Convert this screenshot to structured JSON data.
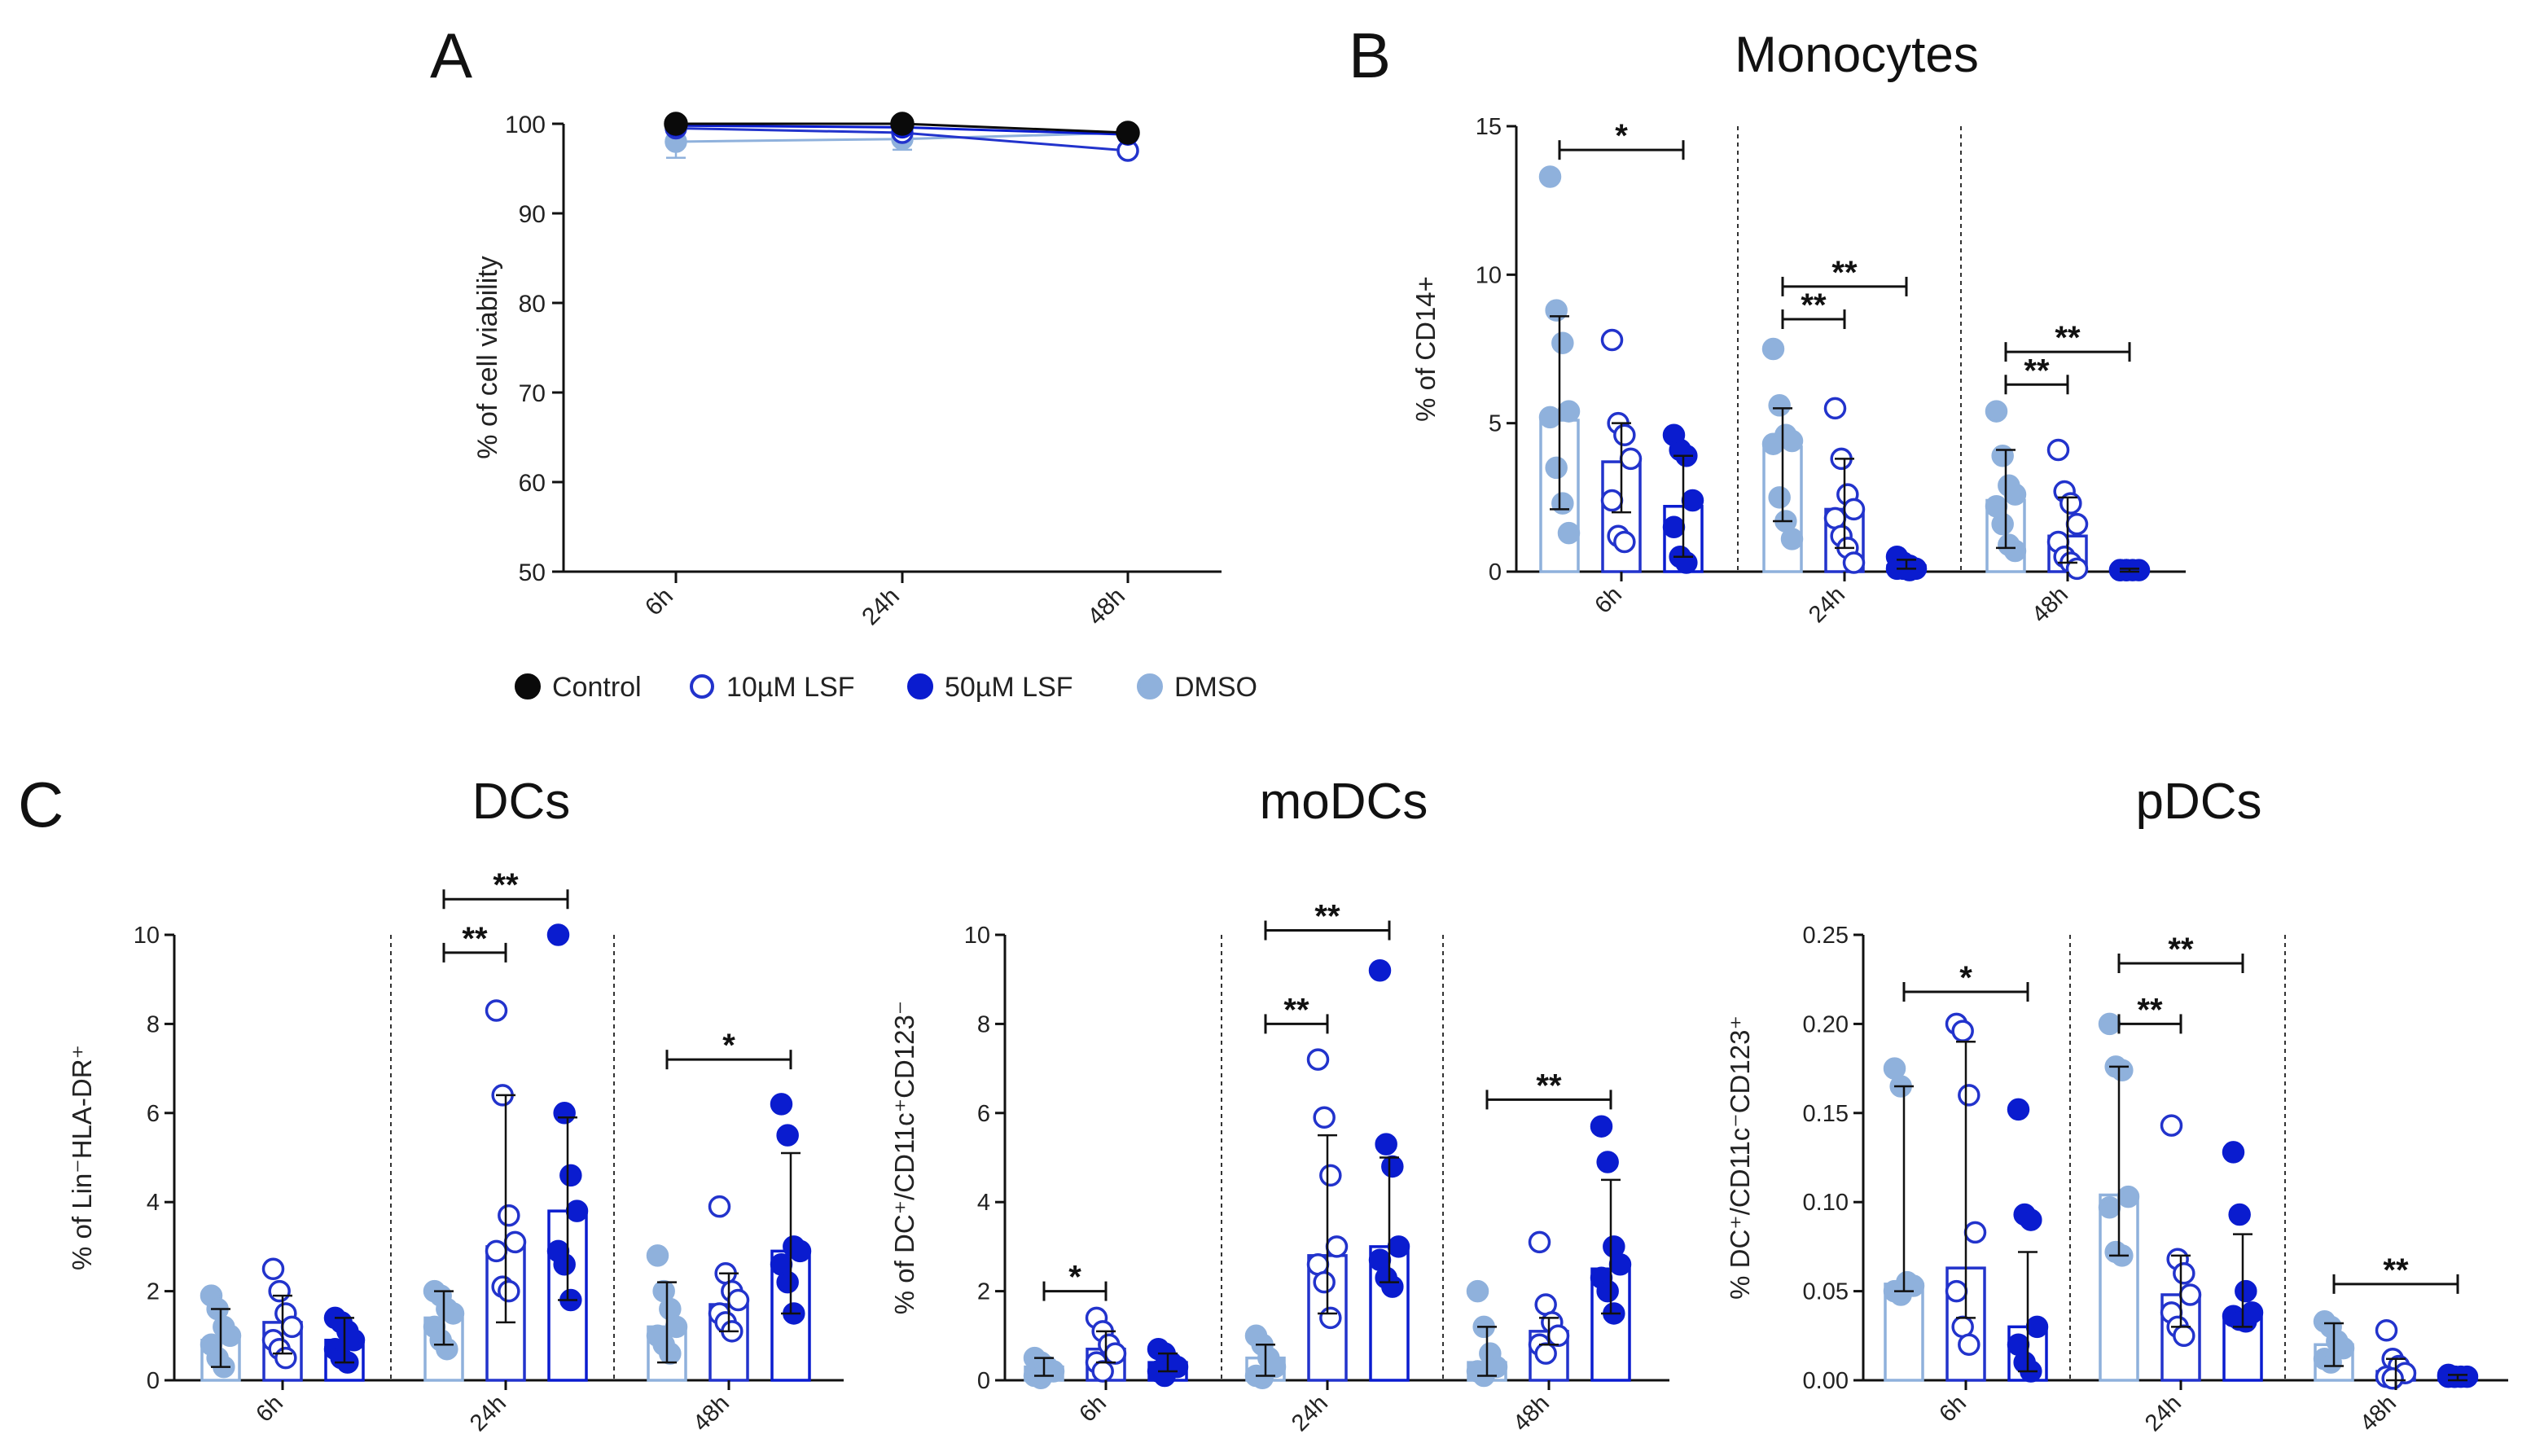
{
  "colors": {
    "control": "#0a0a0a",
    "lsf10": "#2233cc",
    "lsf50": "#0a1ccf",
    "dmso": "#8fb1dc",
    "axis": "#111111"
  },
  "legend": {
    "items": [
      {
        "key": "control",
        "label": "Control",
        "marker": "filled-black"
      },
      {
        "key": "lsf10",
        "label": "10µM LSF",
        "marker": "open-blue"
      },
      {
        "key": "lsf50",
        "label": "50µM LSF",
        "marker": "filled-blue"
      },
      {
        "key": "dmso",
        "label": "DMSO",
        "marker": "filled-lightblue"
      }
    ]
  },
  "panels": {
    "A": "A",
    "B": "B",
    "C": "C"
  },
  "chart_data": [
    {
      "id": "A",
      "type": "line",
      "title": "",
      "xlabel": "",
      "ylabel": "% of cell viability",
      "categories": [
        "6h",
        "24h",
        "48h"
      ],
      "ylim": [
        50,
        100
      ],
      "yticks": [
        50,
        60,
        70,
        80,
        90,
        100
      ],
      "series": [
        {
          "key": "control",
          "name": "Control",
          "values": [
            100,
            100,
            99
          ],
          "errors": [
            0.3,
            0.3,
            0.3
          ]
        },
        {
          "key": "lsf10",
          "name": "10µM LSF",
          "values": [
            99.5,
            99,
            97
          ],
          "errors": [
            0.5,
            0.5,
            0.5
          ]
        },
        {
          "key": "lsf50",
          "name": "50µM LSF",
          "values": [
            99.8,
            99.6,
            98.8
          ],
          "errors": [
            0.3,
            0.3,
            0.3
          ]
        },
        {
          "key": "dmso",
          "name": "DMSO",
          "values": [
            98,
            98.3,
            99
          ],
          "errors": [
            1.8,
            1.2,
            0.5
          ]
        }
      ]
    },
    {
      "id": "B",
      "type": "bar",
      "title": "Monocytes",
      "ylabel": "% of CD14+",
      "ylabel_html": "",
      "groups": [
        "6h",
        "24h",
        "48h"
      ],
      "ylim": [
        0,
        15
      ],
      "yticks": [
        0,
        5,
        10,
        15
      ],
      "ytick_labels": [
        "0",
        "5",
        "10",
        "15"
      ],
      "series_keys": [
        "dmso",
        "lsf10",
        "lsf50"
      ],
      "bars": [
        [
          {
            "mean": 5.1,
            "sdLow": 2.1,
            "sdHigh": 8.6,
            "points": [
              13.3,
              8.8,
              7.7,
              5.4,
              5.2,
              3.5,
              2.3,
              1.3
            ]
          },
          {
            "mean": 3.7,
            "sdLow": 2.0,
            "sdHigh": 5.0,
            "points": [
              7.8,
              5.0,
              4.6,
              3.8,
              2.4,
              1.2,
              1.0
            ]
          },
          {
            "mean": 2.2,
            "sdLow": 0.5,
            "sdHigh": 3.9,
            "points": [
              4.6,
              4.1,
              3.9,
              2.4,
              1.5,
              0.5,
              0.3
            ]
          }
        ],
        [
          {
            "mean": 4.2,
            "sdLow": 1.7,
            "sdHigh": 5.5,
            "points": [
              7.5,
              5.6,
              4.6,
              4.4,
              4.3,
              2.5,
              1.7,
              1.1
            ]
          },
          {
            "mean": 2.1,
            "sdLow": 0.8,
            "sdHigh": 3.8,
            "points": [
              5.5,
              3.8,
              2.6,
              2.1,
              1.8,
              1.2,
              0.8,
              0.3
            ]
          },
          {
            "mean": 0.2,
            "sdLow": 0.1,
            "sdHigh": 0.4,
            "points": [
              0.5,
              0.3,
              0.2,
              0.1,
              0.1,
              0.1,
              0.05
            ]
          }
        ],
        [
          {
            "mean": 2.4,
            "sdLow": 0.8,
            "sdHigh": 4.1,
            "points": [
              5.4,
              3.9,
              2.9,
              2.6,
              2.2,
              1.6,
              0.9,
              0.7
            ]
          },
          {
            "mean": 1.2,
            "sdLow": 0.3,
            "sdHigh": 2.5,
            "points": [
              4.1,
              2.7,
              2.3,
              1.6,
              1.0,
              0.5,
              0.3,
              0.1
            ]
          },
          {
            "mean": 0.05,
            "sdLow": 0.0,
            "sdHigh": 0.1,
            "points": [
              0.05,
              0.05,
              0.05,
              0.05,
              0.05,
              0.05
            ]
          }
        ]
      ],
      "sig": [
        {
          "group": 0,
          "from": 0,
          "to": 2,
          "label": "*",
          "y": 14.2
        },
        {
          "group": 1,
          "from": 0,
          "to": 1,
          "label": "**",
          "y": 8.5
        },
        {
          "group": 1,
          "from": 0,
          "to": 2,
          "label": "**",
          "y": 9.6
        },
        {
          "group": 2,
          "from": 0,
          "to": 1,
          "label": "**",
          "y": 6.3
        },
        {
          "group": 2,
          "from": 0,
          "to": 2,
          "label": "**",
          "y": 7.4
        }
      ]
    },
    {
      "id": "C1",
      "type": "bar",
      "title": "DCs",
      "ylabel": "% of Lin⁻HLA-DR⁺",
      "groups": [
        "6h",
        "24h",
        "48h"
      ],
      "ylim": [
        0,
        10
      ],
      "yticks": [
        0,
        2,
        4,
        6,
        8,
        10
      ],
      "ytick_labels": [
        "0",
        "2",
        "4",
        "6",
        "8",
        "10"
      ],
      "series_keys": [
        "dmso",
        "lsf10",
        "lsf50"
      ],
      "bars": [
        [
          {
            "mean": 0.9,
            "sdLow": 0.3,
            "sdHigh": 1.6,
            "points": [
              1.9,
              1.6,
              1.2,
              1.0,
              0.8,
              0.5,
              0.3
            ]
          },
          {
            "mean": 1.3,
            "sdLow": 0.6,
            "sdHigh": 1.9,
            "points": [
              2.5,
              2.0,
              1.5,
              1.2,
              0.9,
              0.7,
              0.5
            ]
          },
          {
            "mean": 0.9,
            "sdLow": 0.4,
            "sdHigh": 1.4,
            "points": [
              1.4,
              1.3,
              1.1,
              0.9,
              0.7,
              0.5,
              0.4
            ]
          }
        ],
        [
          {
            "mean": 1.4,
            "sdLow": 0.8,
            "sdHigh": 2.0,
            "points": [
              2.0,
              1.9,
              1.6,
              1.5,
              1.2,
              0.9,
              0.7
            ]
          },
          {
            "mean": 3.0,
            "sdLow": 1.3,
            "sdHigh": 6.4,
            "points": [
              8.3,
              6.4,
              3.7,
              3.1,
              2.9,
              2.1,
              2.0
            ]
          },
          {
            "mean": 3.8,
            "sdLow": 1.8,
            "sdHigh": 5.9,
            "points": [
              10.0,
              6.0,
              4.6,
              3.8,
              2.9,
              2.6,
              1.8
            ]
          }
        ],
        [
          {
            "mean": 1.2,
            "sdLow": 0.4,
            "sdHigh": 2.2,
            "points": [
              2.8,
              2.0,
              1.6,
              1.2,
              1.0,
              0.8,
              0.6
            ]
          },
          {
            "mean": 1.7,
            "sdLow": 1.1,
            "sdHigh": 2.4,
            "points": [
              3.9,
              2.4,
              2.0,
              1.8,
              1.5,
              1.3,
              1.1
            ]
          },
          {
            "mean": 2.9,
            "sdLow": 1.5,
            "sdHigh": 5.1,
            "points": [
              6.2,
              5.5,
              3.0,
              2.9,
              2.6,
              2.2,
              1.5
            ]
          }
        ]
      ],
      "sig": [
        {
          "group": 1,
          "from": 0,
          "to": 1,
          "label": "**",
          "y": 9.6
        },
        {
          "group": 1,
          "from": 0,
          "to": 2,
          "label": "**",
          "y": 10.8
        },
        {
          "group": 2,
          "from": 0,
          "to": 2,
          "label": "*",
          "y": 7.2
        }
      ]
    },
    {
      "id": "C2",
      "type": "bar",
      "title": "moDCs",
      "ylabel": "% of DC⁺/CD11c⁺CD123⁻",
      "groups": [
        "6h",
        "24h",
        "48h"
      ],
      "ylim": [
        0,
        10
      ],
      "yticks": [
        0,
        2,
        4,
        6,
        8,
        10
      ],
      "ytick_labels": [
        "0",
        "2",
        "4",
        "6",
        "8",
        "10"
      ],
      "series_keys": [
        "dmso",
        "lsf10",
        "lsf50"
      ],
      "bars": [
        [
          {
            "mean": 0.3,
            "sdLow": 0.1,
            "sdHigh": 0.5,
            "points": [
              0.5,
              0.4,
              0.3,
              0.2,
              0.1,
              0.05
            ]
          },
          {
            "mean": 0.7,
            "sdLow": 0.4,
            "sdHigh": 1.1,
            "points": [
              1.4,
              1.1,
              0.8,
              0.6,
              0.4,
              0.2
            ]
          },
          {
            "mean": 0.4,
            "sdLow": 0.2,
            "sdHigh": 0.6,
            "points": [
              0.7,
              0.6,
              0.4,
              0.3,
              0.2,
              0.1
            ]
          }
        ],
        [
          {
            "mean": 0.5,
            "sdLow": 0.1,
            "sdHigh": 0.8,
            "points": [
              1.0,
              0.8,
              0.5,
              0.3,
              0.1,
              0.05
            ]
          },
          {
            "mean": 2.8,
            "sdLow": 1.5,
            "sdHigh": 5.5,
            "points": [
              7.2,
              5.9,
              4.6,
              3.0,
              2.6,
              2.2,
              1.4
            ]
          },
          {
            "mean": 3.0,
            "sdLow": 2.2,
            "sdHigh": 5.0,
            "points": [
              9.2,
              5.3,
              4.8,
              3.0,
              2.7,
              2.3,
              2.1
            ]
          }
        ],
        [
          {
            "mean": 0.4,
            "sdLow": 0.1,
            "sdHigh": 1.2,
            "points": [
              2.0,
              1.2,
              0.6,
              0.3,
              0.2,
              0.1
            ]
          },
          {
            "mean": 1.1,
            "sdLow": 0.8,
            "sdHigh": 1.4,
            "points": [
              3.1,
              1.7,
              1.3,
              1.0,
              0.8,
              0.6
            ]
          },
          {
            "mean": 2.5,
            "sdLow": 1.5,
            "sdHigh": 4.5,
            "points": [
              5.7,
              4.9,
              3.0,
              2.6,
              2.3,
              2.0,
              1.5
            ]
          }
        ]
      ],
      "sig": [
        {
          "group": 0,
          "from": 0,
          "to": 1,
          "label": "*",
          "y": 2.0
        },
        {
          "group": 1,
          "from": 0,
          "to": 1,
          "label": "**",
          "y": 8.0
        },
        {
          "group": 1,
          "from": 0,
          "to": 2,
          "label": "**",
          "y": 10.1
        },
        {
          "group": 2,
          "from": 0,
          "to": 2,
          "label": "**",
          "y": 6.3
        }
      ]
    },
    {
      "id": "C3",
      "type": "bar",
      "title": "pDCs",
      "ylabel": "% DC⁺/CD11c⁻CD123⁺",
      "groups": [
        "6h",
        "24h",
        "48h"
      ],
      "ylim": [
        0,
        0.25
      ],
      "yticks": [
        0,
        0.05,
        0.1,
        0.15,
        0.2,
        0.25
      ],
      "ytick_labels": [
        "0.00",
        "0.05",
        "0.10",
        "0.15",
        "0.20",
        "0.25"
      ],
      "series_keys": [
        "dmso",
        "lsf10",
        "lsf50"
      ],
      "bars": [
        [
          {
            "mean": 0.054,
            "sdLow": 0.05,
            "sdHigh": 0.165,
            "points": [
              0.175,
              0.165,
              0.055,
              0.053,
              0.05,
              0.048
            ]
          },
          {
            "mean": 0.063,
            "sdLow": 0.035,
            "sdHigh": 0.19,
            "points": [
              0.2,
              0.196,
              0.16,
              0.083,
              0.05,
              0.03,
              0.02
            ]
          },
          {
            "mean": 0.03,
            "sdLow": 0.005,
            "sdHigh": 0.072,
            "points": [
              0.152,
              0.093,
              0.09,
              0.03,
              0.02,
              0.01,
              0.005
            ]
          }
        ],
        [
          {
            "mean": 0.104,
            "sdLow": 0.07,
            "sdHigh": 0.176,
            "points": [
              0.2,
              0.176,
              0.174,
              0.103,
              0.097,
              0.072,
              0.07
            ]
          },
          {
            "mean": 0.048,
            "sdLow": 0.03,
            "sdHigh": 0.07,
            "points": [
              0.143,
              0.068,
              0.06,
              0.048,
              0.038,
              0.03,
              0.025
            ]
          },
          {
            "mean": 0.036,
            "sdLow": 0.03,
            "sdHigh": 0.082,
            "points": [
              0.128,
              0.093,
              0.05,
              0.038,
              0.036,
              0.034,
              0.033
            ]
          }
        ],
        [
          {
            "mean": 0.02,
            "sdLow": 0.008,
            "sdHigh": 0.032,
            "points": [
              0.033,
              0.03,
              0.022,
              0.018,
              0.012,
              0.01
            ]
          },
          {
            "mean": 0.005,
            "sdLow": 0.0,
            "sdHigh": 0.012,
            "points": [
              0.028,
              0.012,
              0.008,
              0.004,
              0.002,
              0.001
            ]
          },
          {
            "mean": 0.002,
            "sdLow": 0.0,
            "sdHigh": 0.003,
            "points": [
              0.003,
              0.002,
              0.002,
              0.002,
              0.002,
              0.002
            ]
          }
        ]
      ],
      "sig": [
        {
          "group": 0,
          "from": 0,
          "to": 2,
          "label": "*",
          "y": 0.218
        },
        {
          "group": 1,
          "from": 0,
          "to": 1,
          "label": "**",
          "y": 0.2
        },
        {
          "group": 1,
          "from": 0,
          "to": 2,
          "label": "**",
          "y": 0.234
        },
        {
          "group": 2,
          "from": 0,
          "to": 2,
          "label": "**",
          "y": 0.054
        }
      ]
    }
  ]
}
